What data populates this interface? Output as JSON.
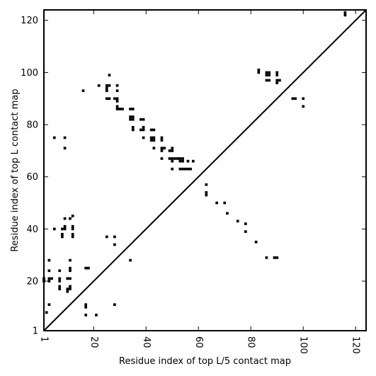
{
  "chart_data": {
    "type": "scatter",
    "title": "",
    "xlabel": "Residue index of top L/5 contact map",
    "ylabel": "Residue index of top L contact map",
    "xlim": [
      1,
      124
    ],
    "ylim": [
      1,
      124
    ],
    "xticks": [
      1,
      20,
      40,
      60,
      80,
      100,
      120
    ],
    "yticks": [
      1,
      20,
      40,
      60,
      80,
      100,
      120
    ],
    "tick_labels_x": [
      "1",
      "20",
      "40",
      "60",
      "80",
      "100",
      "120"
    ],
    "tick_labels_y": [
      "1",
      "20",
      "40",
      "60",
      "80",
      "100",
      "120"
    ],
    "grid": false,
    "diagonal": true,
    "marker": "square",
    "marker_color": "#000000",
    "series": [
      {
        "points": [
          [
            116,
            123
          ],
          [
            116,
            122
          ],
          [
            83,
            101
          ],
          [
            83,
            100
          ],
          [
            86,
            100
          ],
          [
            87,
            100
          ],
          [
            86,
            99
          ],
          [
            87,
            99
          ],
          [
            90,
            100
          ],
          [
            90,
            99
          ],
          [
            86,
            97
          ],
          [
            87,
            97
          ],
          [
            90,
            97
          ],
          [
            91,
            97
          ],
          [
            90,
            96
          ],
          [
            96,
            90
          ],
          [
            97,
            90
          ],
          [
            100,
            90
          ],
          [
            100,
            87
          ],
          [
            16,
            93
          ],
          [
            22,
            95
          ],
          [
            25,
            95
          ],
          [
            26,
            95
          ],
          [
            25,
            94
          ],
          [
            25,
            93
          ],
          [
            26,
            99
          ],
          [
            29,
            95
          ],
          [
            29,
            93
          ],
          [
            25,
            90
          ],
          [
            26,
            90
          ],
          [
            28,
            90
          ],
          [
            29,
            90
          ],
          [
            29,
            89
          ],
          [
            29,
            87
          ],
          [
            29,
            86
          ],
          [
            30,
            86
          ],
          [
            31,
            86
          ],
          [
            34,
            86
          ],
          [
            35,
            86
          ],
          [
            34,
            83
          ],
          [
            35,
            83
          ],
          [
            34,
            82
          ],
          [
            35,
            82
          ],
          [
            38,
            82
          ],
          [
            39,
            82
          ],
          [
            35,
            79
          ],
          [
            35,
            78
          ],
          [
            38,
            78
          ],
          [
            39,
            78
          ],
          [
            39,
            79
          ],
          [
            42,
            78
          ],
          [
            43,
            78
          ],
          [
            39,
            75
          ],
          [
            42,
            75
          ],
          [
            43,
            75
          ],
          [
            42,
            74
          ],
          [
            43,
            74
          ],
          [
            46,
            75
          ],
          [
            46,
            74
          ],
          [
            43,
            71
          ],
          [
            46,
            71
          ],
          [
            47,
            71
          ],
          [
            46,
            70
          ],
          [
            50,
            71
          ],
          [
            49,
            70
          ],
          [
            50,
            70
          ],
          [
            46,
            67
          ],
          [
            49,
            67
          ],
          [
            50,
            67
          ],
          [
            51,
            67
          ],
          [
            52,
            67
          ],
          [
            53,
            67
          ],
          [
            54,
            67
          ],
          [
            53,
            66
          ],
          [
            54,
            66
          ],
          [
            50,
            66
          ],
          [
            56,
            66
          ],
          [
            58,
            66
          ],
          [
            50,
            63
          ],
          [
            53,
            63
          ],
          [
            54,
            63
          ],
          [
            55,
            63
          ],
          [
            56,
            63
          ],
          [
            57,
            63
          ],
          [
            63,
            57
          ],
          [
            63,
            54
          ],
          [
            63,
            53
          ],
          [
            67,
            50
          ],
          [
            70,
            50
          ],
          [
            71,
            46
          ],
          [
            75,
            43
          ],
          [
            78,
            42
          ],
          [
            78,
            39
          ],
          [
            82,
            35
          ],
          [
            86,
            29
          ],
          [
            89,
            29
          ],
          [
            90,
            29
          ],
          [
            5,
            75
          ],
          [
            9,
            75
          ],
          [
            9,
            71
          ],
          [
            5,
            40
          ],
          [
            8,
            40
          ],
          [
            9,
            40
          ],
          [
            9,
            41
          ],
          [
            9,
            44
          ],
          [
            11,
            44
          ],
          [
            12,
            45
          ],
          [
            8,
            38
          ],
          [
            8,
            37
          ],
          [
            12,
            41
          ],
          [
            12,
            40
          ],
          [
            12,
            38
          ],
          [
            12,
            37
          ],
          [
            25,
            37
          ],
          [
            28,
            37
          ],
          [
            28,
            34
          ],
          [
            34,
            28
          ],
          [
            3,
            28
          ],
          [
            11,
            28
          ],
          [
            3,
            24
          ],
          [
            7,
            24
          ],
          [
            11,
            25
          ],
          [
            11,
            24
          ],
          [
            1,
            21
          ],
          [
            1,
            20
          ],
          [
            3,
            21
          ],
          [
            3,
            20
          ],
          [
            4,
            21
          ],
          [
            7,
            21
          ],
          [
            7,
            20
          ],
          [
            10,
            21
          ],
          [
            11,
            21
          ],
          [
            7,
            18
          ],
          [
            7,
            17
          ],
          [
            10,
            17
          ],
          [
            11,
            17
          ],
          [
            11,
            18
          ],
          [
            10,
            16
          ],
          [
            17,
            25
          ],
          [
            18,
            25
          ],
          [
            2,
            8
          ],
          [
            3,
            11
          ],
          [
            28,
            11
          ],
          [
            17,
            11
          ],
          [
            17,
            10
          ],
          [
            17,
            7
          ],
          [
            21,
            7
          ]
        ]
      }
    ]
  }
}
